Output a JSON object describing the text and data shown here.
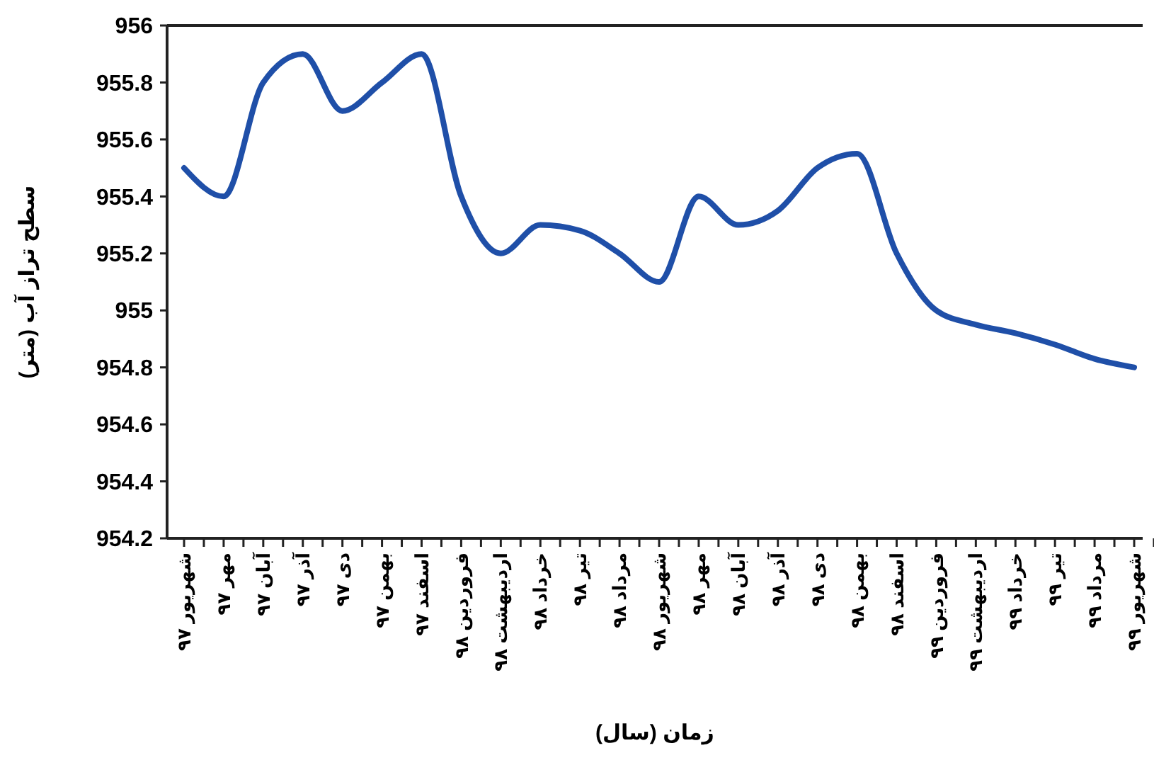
{
  "chart_data": {
    "type": "line",
    "xlabel": "زمان (سال)",
    "ylabel": "سطح تراز آب (متر)",
    "categories": [
      "شهریور ۹۷",
      "مهر ۹۷",
      "آبان ۹۷",
      "آذر ۹۷",
      "دی ۹۷",
      "بهمن ۹۷",
      "اسفند ۹۷",
      "فروردین ۹۸",
      "اردیبهشت ۹۸",
      "خرداد ۹۸",
      "تیر ۹۸",
      "مرداد ۹۸",
      "شهریور ۹۸",
      "مهر ۹۸",
      "آبان ۹۸",
      "آذر ۹۸",
      "دی ۹۸",
      "بهمن ۹۸",
      "اسفند ۹۸",
      "فروردین ۹۹",
      "اردیبهشت ۹۹",
      "خرداد ۹۹",
      "تیر ۹۹",
      "مرداد ۹۹",
      "شهریور ۹۹"
    ],
    "series": [
      {
        "color": "#1f4fa8",
        "values": [
          955.5,
          955.4,
          955.8,
          955.9,
          955.7,
          955.8,
          955.9,
          955.4,
          955.2,
          955.3,
          955.28,
          955.2,
          955.1,
          955.4,
          955.3,
          955.35,
          955.5,
          955.55,
          955.2,
          955.0,
          954.95,
          954.92,
          954.88,
          954.83,
          954.8
        ]
      }
    ],
    "ylim": [
      954.2,
      956
    ],
    "yticks": [
      954.2,
      954.4,
      954.6,
      954.8,
      955,
      955.2,
      955.4,
      955.6,
      955.8,
      956
    ],
    "grid": false,
    "marker": "none",
    "line_style": "solid"
  }
}
